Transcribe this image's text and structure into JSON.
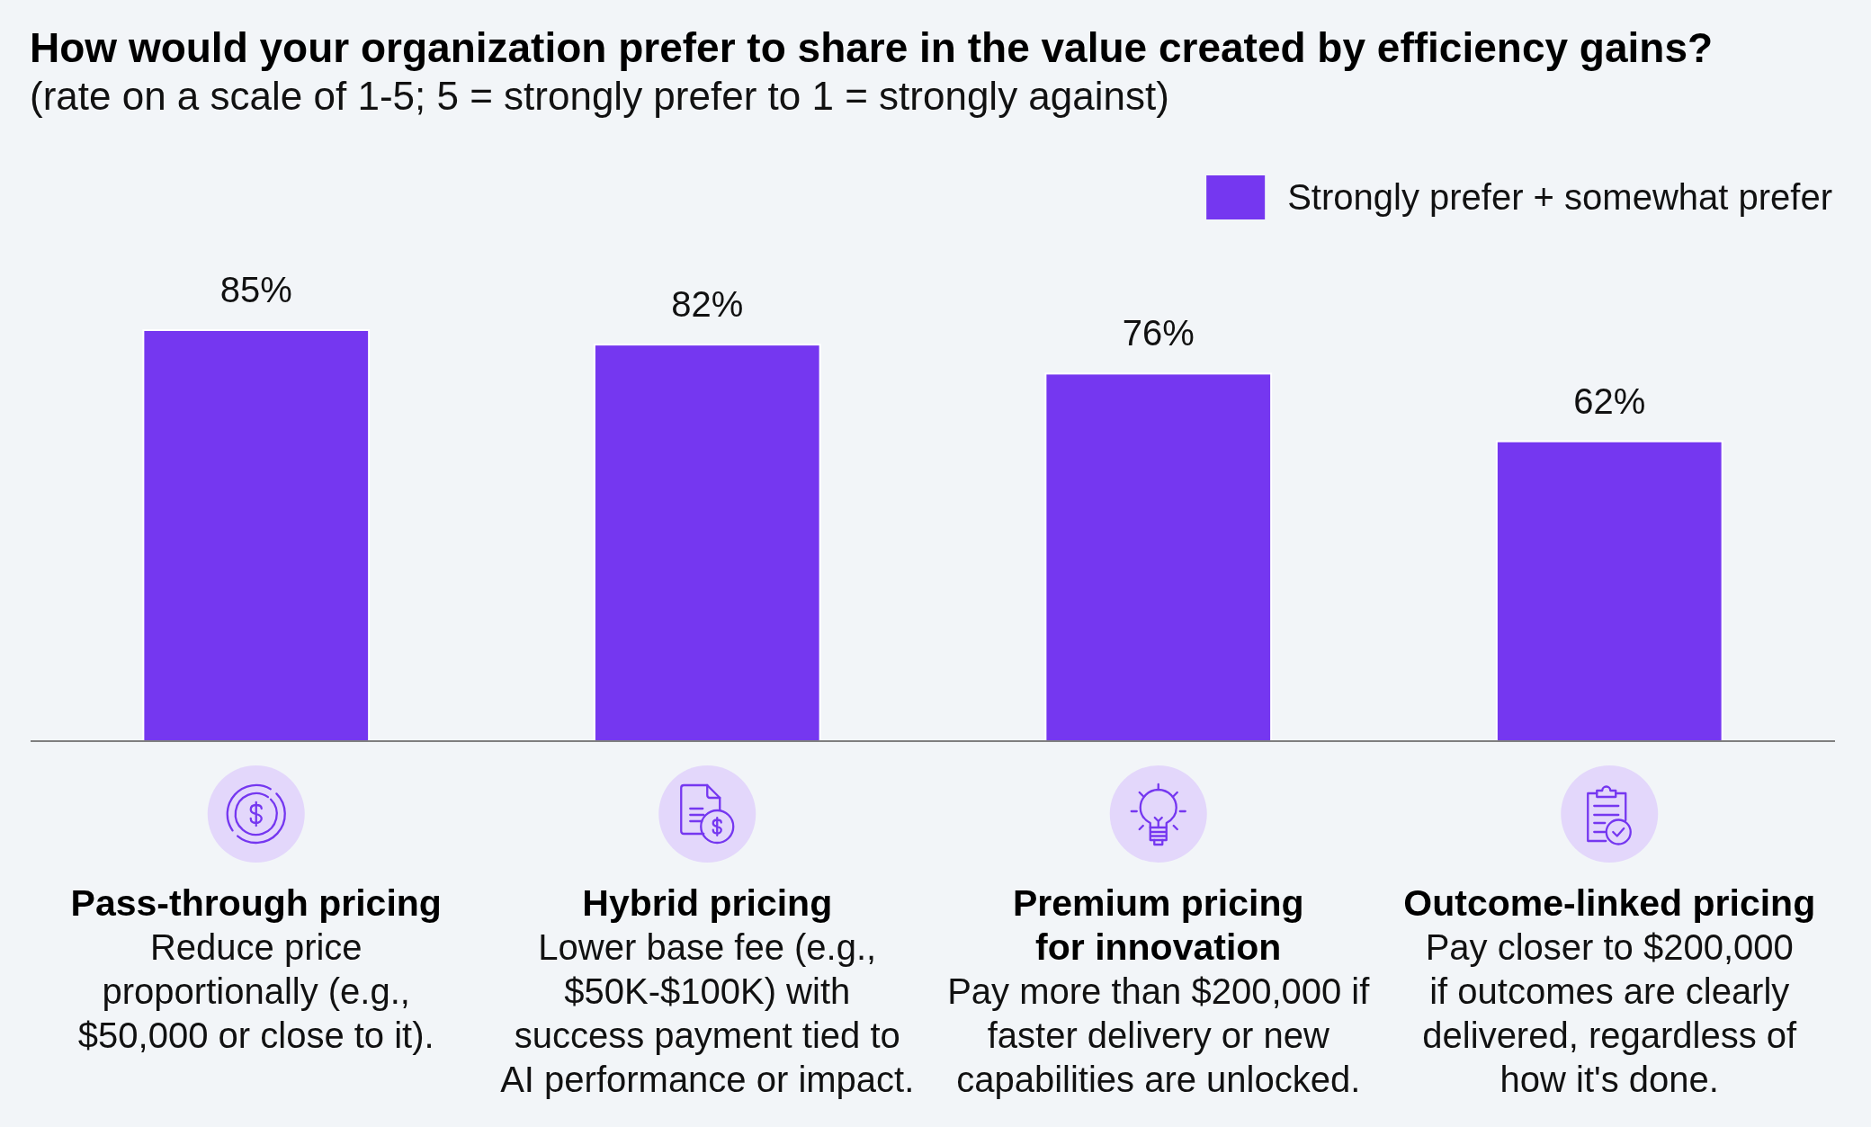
{
  "chart_data": {
    "type": "bar",
    "title": "How would your organization prefer to share in the value created by efficiency gains?",
    "subtitle": "(rate on a scale of 1-5; 5 = strongly prefer to 1 = strongly against)",
    "categories": [
      "Pass-through pricing",
      "Hybrid pricing",
      "Premium pricing\nfor innovation",
      "Outcome-linked pricing"
    ],
    "series": [
      {
        "name": "Strongly prefer + somewhat prefer",
        "color": "#7537f0",
        "values": [
          85,
          82,
          76,
          62
        ],
        "value_labels": [
          "85%",
          "82%",
          "76%",
          "62%"
        ]
      }
    ],
    "annotations": [
      "Reduce price\nproportionally (e.g.,\n$50,000 or close to it).",
      "Lower base fee (e.g.,\n$50K-$100K) with\nsuccess payment tied to\nAI performance or impact.",
      "Pay more than $200,000 if\nfaster delivery or new\ncapabilities are unlocked.",
      "Pay closer to $200,000\nif outcomes are clearly\ndelivered, regardless of\nhow it's done."
    ],
    "tick_labels": "x",
    "legend": "top right"
  }
}
